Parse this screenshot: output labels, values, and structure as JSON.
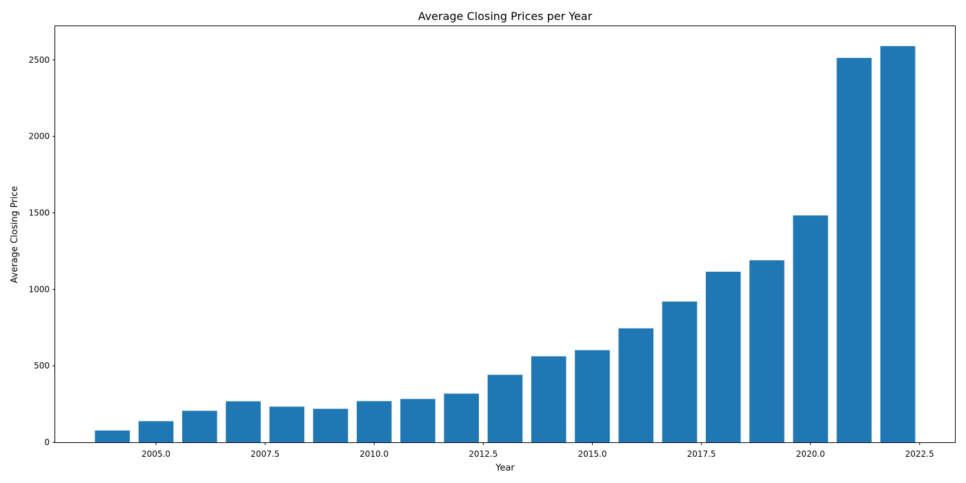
{
  "chart_data": {
    "type": "bar",
    "title": "Average Closing Prices per Year",
    "xlabel": "Year",
    "ylabel": "Average Closing Price",
    "x": [
      2004,
      2005,
      2006,
      2007,
      2008,
      2009,
      2010,
      2011,
      2012,
      2013,
      2014,
      2015,
      2016,
      2017,
      2018,
      2019,
      2020,
      2021,
      2022
    ],
    "values": [
      77,
      138,
      206,
      268,
      233,
      219,
      269,
      283,
      318,
      441,
      562,
      602,
      745,
      920,
      1115,
      1190,
      1483,
      2513,
      2590
    ],
    "bar_width": 0.8,
    "xlim": [
      2002.69,
      2023.31
    ],
    "ylim": [
      0,
      2720
    ],
    "xticks": [
      2005.0,
      2007.5,
      2010.0,
      2012.5,
      2015.0,
      2017.5,
      2020.0,
      2022.5
    ],
    "xtick_labels": [
      "2005.0",
      "2007.5",
      "2010.0",
      "2012.5",
      "2015.0",
      "2017.5",
      "2020.0",
      "2022.5"
    ],
    "yticks": [
      0,
      500,
      1000,
      1500,
      2000,
      2500
    ],
    "ytick_labels": [
      "0",
      "500",
      "1000",
      "1500",
      "2000",
      "2500"
    ],
    "bar_color": "#1f77b4",
    "grid": false,
    "legend": "none"
  }
}
